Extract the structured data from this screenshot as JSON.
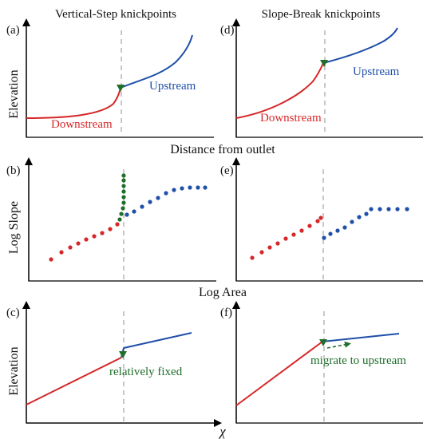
{
  "titles": {
    "left": "Vertical-Step knickpoints",
    "right": "Slope-Break knickpoints"
  },
  "axis_labels": {
    "row1_y": "Elevation",
    "row1_x": "Distance from outlet",
    "row2_y": "Log Slope",
    "row2_x": "Log Area",
    "row3_y": "Elevation",
    "row3_x": "χ"
  },
  "panels": {
    "a": "(a)",
    "b": "(b)",
    "c": "(c)",
    "d": "(d)",
    "e": "(e)",
    "f": "(f)"
  },
  "annotations": {
    "a_upstream": "Upstream",
    "a_downstream": "Downstream",
    "d_upstream": "Upstream",
    "d_downstream": "Downstream",
    "c_note": "relatively fixed",
    "f_note": "migrate to upstream"
  },
  "colors": {
    "downstream": "#d62728",
    "upstream": "#1f4fa8",
    "knickpoint": "#1f6e2a",
    "divider": "#c8c8c8"
  }
}
